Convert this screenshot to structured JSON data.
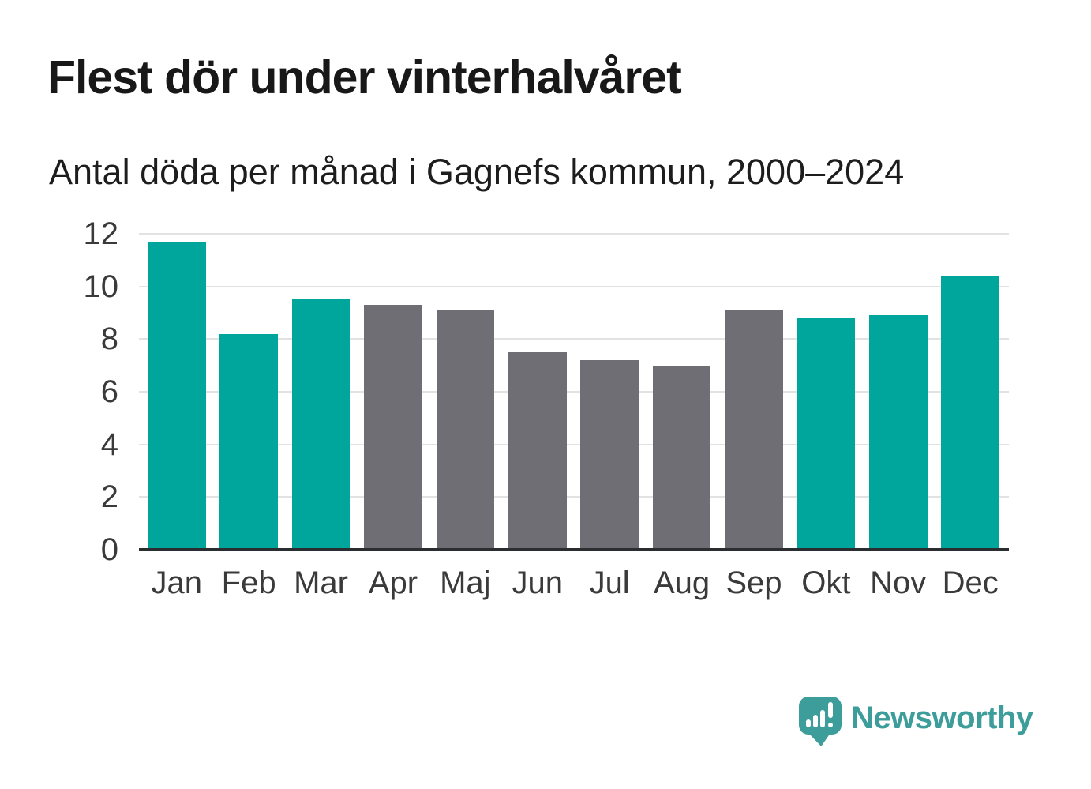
{
  "page": {
    "title": "Flest dör under vinterhalvåret",
    "subtitle": "Antal döda per månad i Gagnefs kommun, 2000–2024"
  },
  "chart_data": {
    "type": "bar",
    "title": "Flest dör under vinterhalvåret",
    "subtitle": "Antal döda per månad i Gagnefs kommun, 2000–2024",
    "categories": [
      "Jan",
      "Feb",
      "Mar",
      "Apr",
      "Maj",
      "Jun",
      "Jul",
      "Aug",
      "Sep",
      "Okt",
      "Nov",
      "Dec"
    ],
    "values": [
      11.7,
      8.2,
      9.5,
      9.3,
      9.1,
      7.5,
      7.2,
      7.0,
      9.1,
      8.8,
      8.9,
      10.4
    ],
    "highlight_flags": [
      1,
      1,
      1,
      0,
      0,
      0,
      0,
      0,
      0,
      1,
      1,
      1
    ],
    "highlight_meaning": "winter half-year months in teal, summer months in gray",
    "xlabel": "",
    "ylabel": "",
    "ylim": [
      0,
      12
    ],
    "yticks": [
      0,
      2,
      4,
      6,
      8,
      10,
      12
    ],
    "grid": true,
    "legend": false,
    "colors": {
      "highlight": "#00a59b",
      "muted": "#6e6e74",
      "gridline": "#e2e2e2",
      "baseline": "#2b2e30",
      "tick_text": "#3a3a3a"
    }
  },
  "branding": {
    "name": "Newsworthy",
    "icon": "speech-bubble-bar-chart-icon",
    "color": "#3d9d9b"
  }
}
